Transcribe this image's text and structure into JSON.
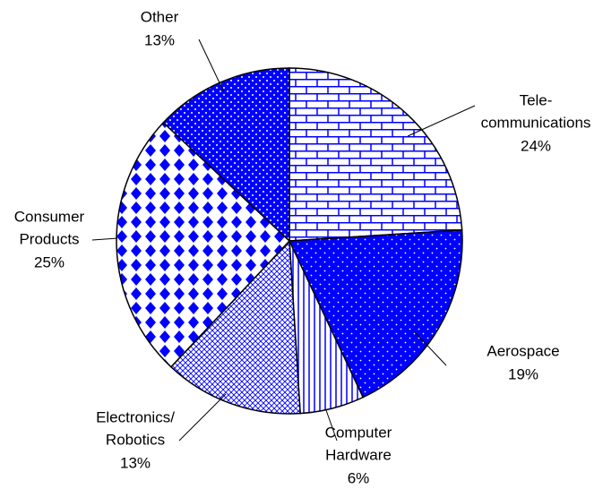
{
  "chart_data": {
    "type": "pie",
    "categories": [
      [
        "Tele-",
        "communications"
      ],
      [
        "Aerospace"
      ],
      [
        "Computer",
        "Hardware"
      ],
      [
        "Electronics/",
        "Robotics"
      ],
      [
        "Consumer",
        "Products"
      ],
      [
        "Other"
      ]
    ],
    "values": [
      24,
      19,
      6,
      13,
      25,
      13
    ],
    "value_labels": [
      "24%",
      "19%",
      "6%",
      "13%",
      "25%",
      "13%"
    ],
    "colors": [
      "#0000ff",
      "#0000ff",
      "#0000ff",
      "#0000ff",
      "#0000ff",
      "#0000ff"
    ]
  }
}
